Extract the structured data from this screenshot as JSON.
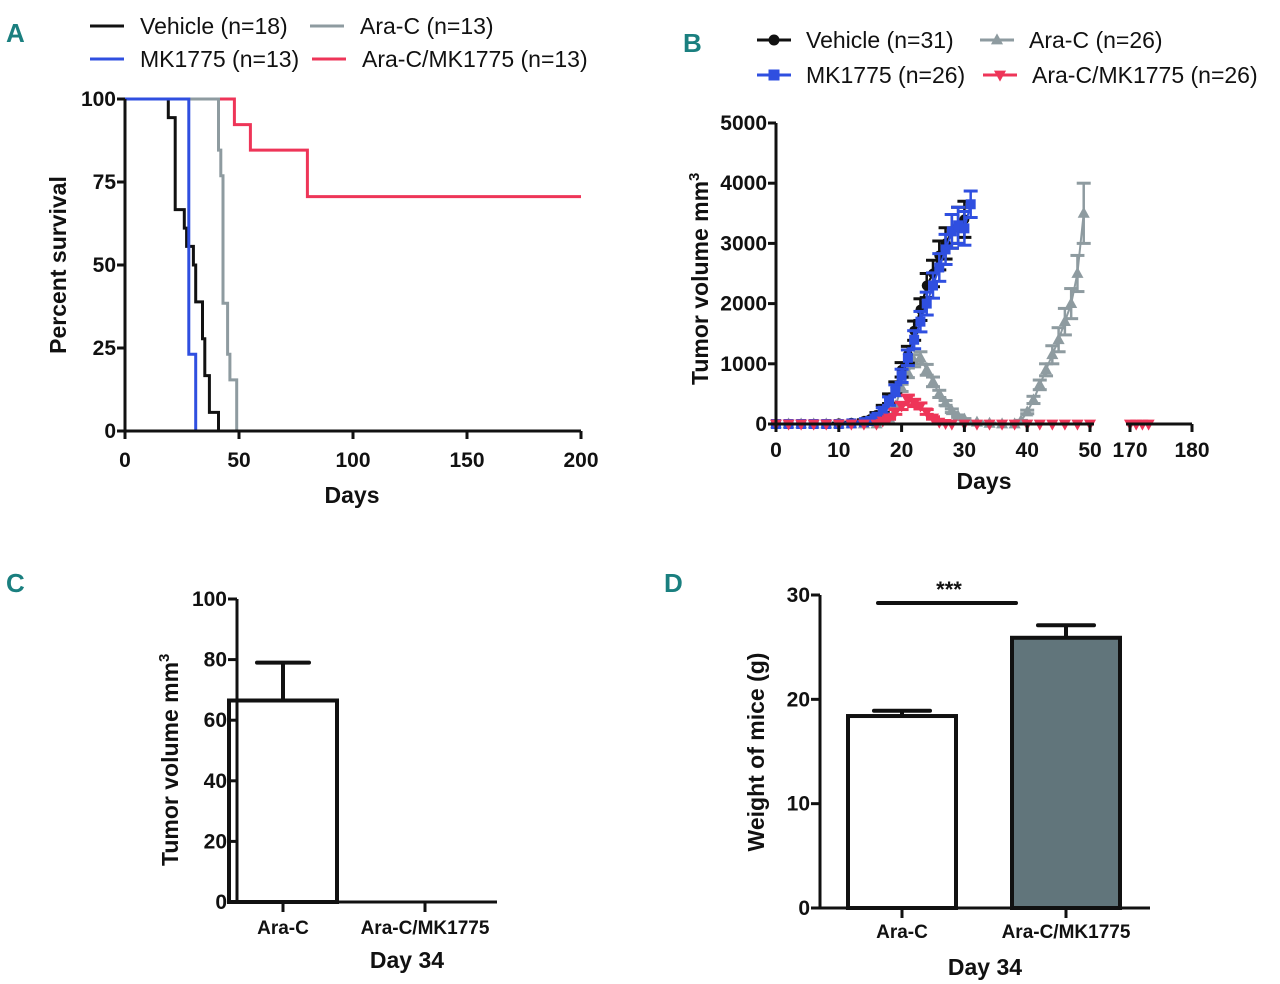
{
  "colors": {
    "panel_letter": "#1a7f7f",
    "vehicle": "#111111",
    "mk1775": "#2f4fe0",
    "arac": "#8e9ba0",
    "combo": "#ee3558",
    "bar_combo_fill": "#61757b",
    "bar_arac_fill": "#ffffff"
  },
  "chart_data": [
    {
      "panel": "A",
      "type": "line",
      "subtype": "kaplan-meier step",
      "title": "",
      "xlabel": "Days",
      "ylabel": "Percent survival",
      "xlim": [
        0,
        200
      ],
      "ylim": [
        0,
        100
      ],
      "xticks": [
        "0",
        "50",
        "100",
        "150",
        "200"
      ],
      "yticks": [
        "0",
        "25",
        "50",
        "75",
        "100"
      ],
      "legend_position": "top",
      "series": [
        {
          "name": "Vehicle (n=18)",
          "color_key": "vehicle",
          "steps": [
            [
              0,
              100
            ],
            [
              19,
              100
            ],
            [
              19,
              94.4
            ],
            [
              22,
              94.4
            ],
            [
              22,
              66.7
            ],
            [
              26,
              66.7
            ],
            [
              26,
              61.1
            ],
            [
              27,
              61.1
            ],
            [
              27,
              55.6
            ],
            [
              30,
              55.6
            ],
            [
              30,
              50
            ],
            [
              31,
              50
            ],
            [
              31,
              38.9
            ],
            [
              34,
              38.9
            ],
            [
              34,
              27.8
            ],
            [
              35,
              27.8
            ],
            [
              35,
              16.7
            ],
            [
              37,
              16.7
            ],
            [
              37,
              5.6
            ],
            [
              41,
              5.6
            ],
            [
              41,
              0
            ]
          ]
        },
        {
          "name": "MK1775 (n=13)",
          "color_key": "mk1775",
          "steps": [
            [
              0,
              100
            ],
            [
              28,
              100
            ],
            [
              28,
              23.1
            ],
            [
              31,
              23.1
            ],
            [
              31,
              0
            ]
          ]
        },
        {
          "name": "Ara-C (n=13)",
          "color_key": "arac",
          "steps": [
            [
              0,
              100
            ],
            [
              41,
              100
            ],
            [
              41,
              84.6
            ],
            [
              42,
              84.6
            ],
            [
              42,
              76.9
            ],
            [
              43,
              76.9
            ],
            [
              43,
              38.5
            ],
            [
              45,
              38.5
            ],
            [
              45,
              23.1
            ],
            [
              46,
              23.1
            ],
            [
              46,
              15.4
            ],
            [
              49,
              15.4
            ],
            [
              49,
              0
            ]
          ]
        },
        {
          "name": "Ara-C/MK1775 (n=13)",
          "color_key": "combo",
          "steps": [
            [
              0,
              100
            ],
            [
              48,
              100
            ],
            [
              48,
              92.3
            ],
            [
              55,
              92.3
            ],
            [
              55,
              84.6
            ],
            [
              80,
              84.6
            ],
            [
              80,
              70.6
            ],
            [
              200,
              70.6
            ]
          ]
        }
      ]
    },
    {
      "panel": "B",
      "type": "line",
      "subtype": "mean with error bars, broken x-axis",
      "title": "",
      "xlabel": "Days",
      "ylabel": "Tumor volume mm",
      "ylabel_superscript": "3",
      "xlim_segments": [
        [
          0,
          50
        ],
        [
          170,
          180
        ]
      ],
      "ylim": [
        0,
        5000
      ],
      "xticks": [
        "0",
        "10",
        "20",
        "30",
        "40",
        "50",
        "170",
        "180"
      ],
      "yticks": [
        "0",
        "1000",
        "2000",
        "3000",
        "4000",
        "5000"
      ],
      "legend_position": "top",
      "series": [
        {
          "name": "Vehicle (n=31)",
          "marker": "circle",
          "color_key": "vehicle",
          "x": [
            0,
            2,
            4,
            6,
            8,
            10,
            12,
            14,
            15,
            16,
            17,
            18,
            19,
            20,
            21,
            22,
            23,
            24,
            25,
            26,
            27,
            28,
            29,
            30
          ],
          "y": [
            0,
            0,
            0,
            0,
            0,
            10,
            20,
            50,
            80,
            150,
            250,
            420,
            600,
            900,
            1150,
            1550,
            1900,
            2300,
            2500,
            2800,
            3000,
            3200,
            3300,
            3400
          ],
          "err": [
            0,
            0,
            0,
            0,
            0,
            5,
            10,
            20,
            30,
            40,
            60,
            80,
            100,
            120,
            140,
            160,
            180,
            200,
            220,
            240,
            260,
            280,
            300,
            300
          ]
        },
        {
          "name": "MK1775 (n=26)",
          "marker": "square",
          "color_key": "mk1775",
          "x": [
            0,
            2,
            4,
            6,
            8,
            10,
            12,
            14,
            15,
            16,
            17,
            18,
            19,
            20,
            21,
            22,
            23,
            24,
            25,
            26,
            27,
            28,
            29,
            30,
            31
          ],
          "y": [
            0,
            0,
            0,
            0,
            0,
            0,
            10,
            30,
            50,
            120,
            220,
            380,
            560,
            800,
            1100,
            1400,
            1700,
            2000,
            2300,
            2600,
            2900,
            3200,
            3300,
            3250,
            3650
          ],
          "err": [
            0,
            0,
            0,
            0,
            0,
            0,
            5,
            10,
            20,
            30,
            50,
            70,
            90,
            110,
            130,
            150,
            170,
            190,
            210,
            230,
            250,
            280,
            300,
            280,
            220
          ]
        },
        {
          "name": "Ara-C (n=26)",
          "marker": "triangle-up",
          "color_key": "arac",
          "x": [
            0,
            2,
            4,
            6,
            8,
            10,
            12,
            14,
            16,
            18,
            19,
            20,
            21,
            22,
            23,
            24,
            25,
            26,
            27,
            28,
            29,
            30,
            32,
            34,
            36,
            38,
            39,
            40,
            41,
            42,
            43,
            44,
            45,
            46,
            47,
            48,
            49
          ],
          "y": [
            0,
            0,
            0,
            0,
            0,
            0,
            0,
            0,
            0,
            100,
            300,
            600,
            850,
            1050,
            1100,
            900,
            700,
            500,
            350,
            220,
            130,
            80,
            30,
            10,
            0,
            0,
            50,
            200,
            400,
            650,
            900,
            1150,
            1400,
            1700,
            2000,
            2500,
            3500
          ],
          "err": [
            0,
            0,
            0,
            0,
            0,
            0,
            0,
            0,
            0,
            20,
            40,
            60,
            80,
            100,
            100,
            90,
            80,
            60,
            40,
            30,
            20,
            10,
            5,
            5,
            0,
            0,
            10,
            30,
            60,
            80,
            100,
            150,
            200,
            220,
            250,
            300,
            500
          ]
        },
        {
          "name": "Ara-C/MK1775 (n=26)",
          "marker": "triangle-down",
          "color_key": "combo",
          "x": [
            0,
            2,
            4,
            6,
            8,
            10,
            12,
            14,
            16,
            17,
            18,
            19,
            20,
            21,
            22,
            23,
            24,
            25,
            26,
            27,
            28,
            30,
            32,
            34,
            36,
            38,
            40,
            42,
            44,
            46,
            48,
            50,
            170,
            171,
            172,
            173
          ],
          "y": [
            0,
            0,
            0,
            0,
            0,
            0,
            0,
            0,
            0,
            50,
            100,
            200,
            300,
            400,
            350,
            300,
            200,
            100,
            30,
            10,
            0,
            0,
            0,
            0,
            0,
            0,
            0,
            0,
            0,
            0,
            0,
            0,
            0,
            0,
            0,
            0
          ],
          "err": [
            0,
            0,
            0,
            0,
            0,
            0,
            0,
            0,
            0,
            10,
            20,
            40,
            60,
            80,
            60,
            50,
            40,
            20,
            10,
            5,
            0,
            0,
            0,
            0,
            0,
            0,
            0,
            0,
            0,
            0,
            0,
            0,
            0,
            0,
            0,
            0
          ]
        }
      ]
    },
    {
      "panel": "C",
      "type": "bar",
      "title": "",
      "xlabel": "Day 34",
      "ylabel": "Tumor volume mm",
      "ylabel_superscript": "3",
      "ylim": [
        0,
        100
      ],
      "yticks": [
        "0",
        "20",
        "40",
        "60",
        "80",
        "100"
      ],
      "categories": [
        "Ara-C",
        "Ara-C/MK1775"
      ],
      "values": [
        66.5,
        0
      ],
      "errors": [
        12.5,
        0
      ],
      "fill_keys": [
        "bar_arac_fill",
        "bar_arac_fill"
      ]
    },
    {
      "panel": "D",
      "type": "bar",
      "title": "",
      "xlabel": "Day 34",
      "ylabel": "Weight of mice (g)",
      "ylim": [
        0,
        30
      ],
      "yticks": [
        "0",
        "10",
        "20",
        "30"
      ],
      "categories": [
        "Ara-C",
        "Ara-C/MK1775"
      ],
      "values": [
        18.4,
        25.9
      ],
      "errors": [
        0.5,
        1.2
      ],
      "fill_keys": [
        "bar_arac_fill",
        "bar_combo_fill"
      ],
      "significance": {
        "label": "***",
        "between": [
          0,
          1
        ]
      }
    }
  ],
  "panels": {
    "A": {
      "letter": "A"
    },
    "B": {
      "letter": "B"
    },
    "C": {
      "letter": "C"
    },
    "D": {
      "letter": "D"
    }
  }
}
